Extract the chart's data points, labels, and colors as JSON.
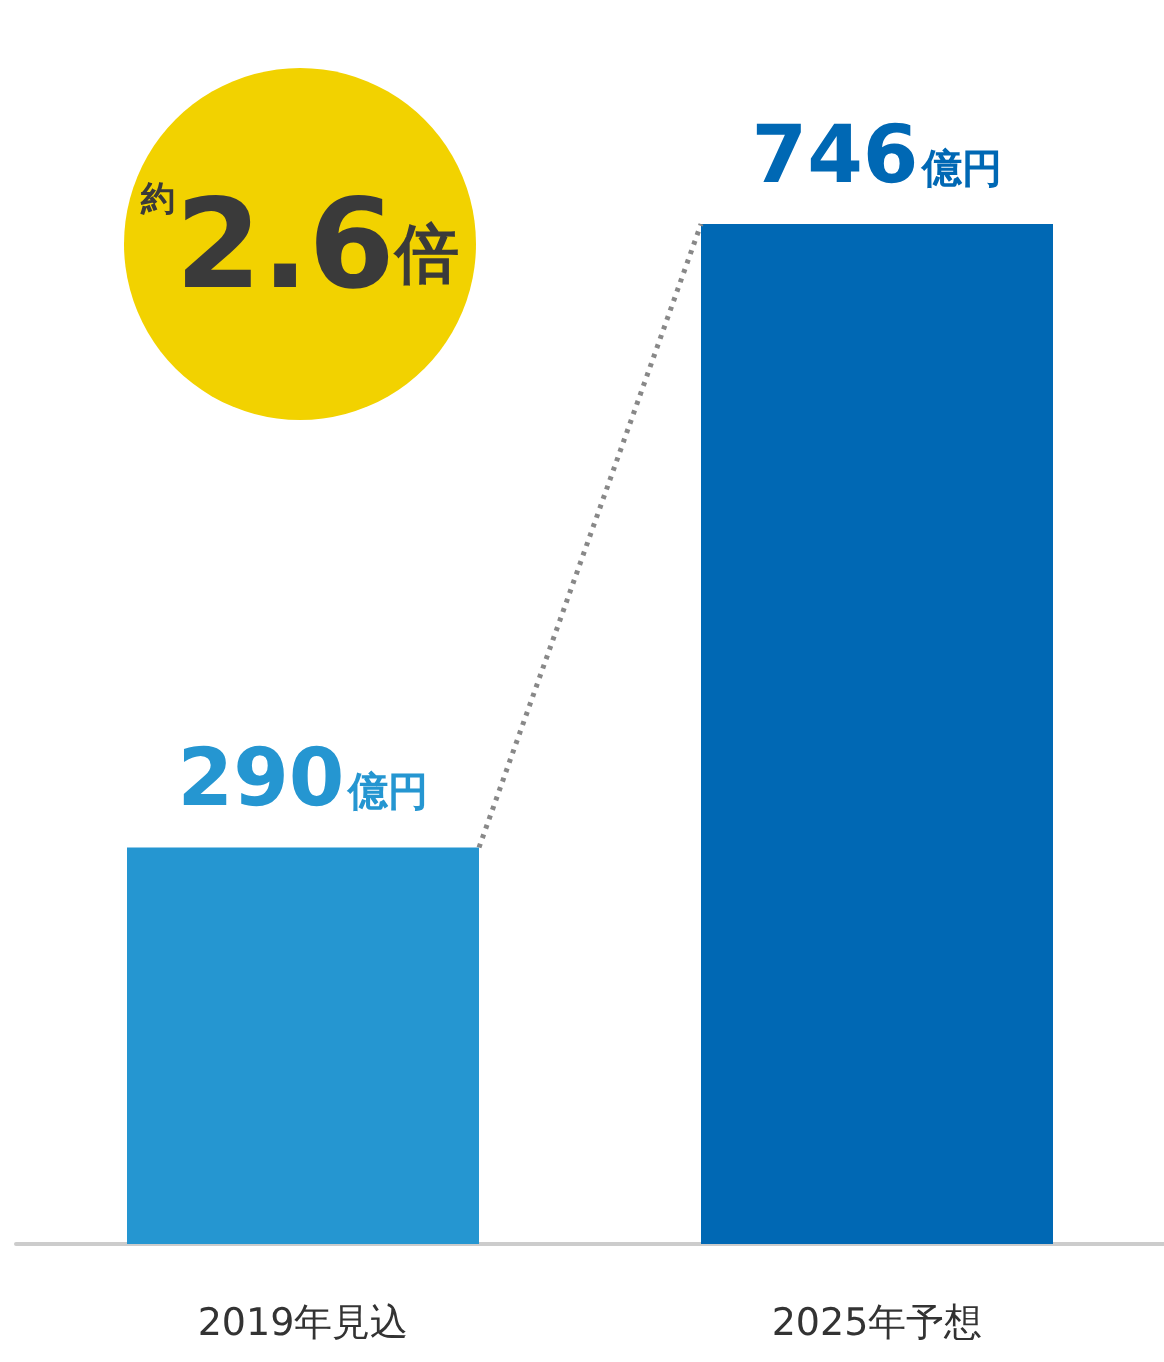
{
  "chart_data": {
    "type": "bar",
    "categories": [
      "2019年見込",
      "2025年予想"
    ],
    "series": [
      {
        "colors": [
          "#2596d1",
          "#0068b4"
        ],
        "values": [
          290,
          746
        ],
        "value_labels": [
          "290億円",
          "746億円"
        ]
      }
    ],
    "tick_labels": "x",
    "annotations": [
      "約2.6倍"
    ]
  }
}
